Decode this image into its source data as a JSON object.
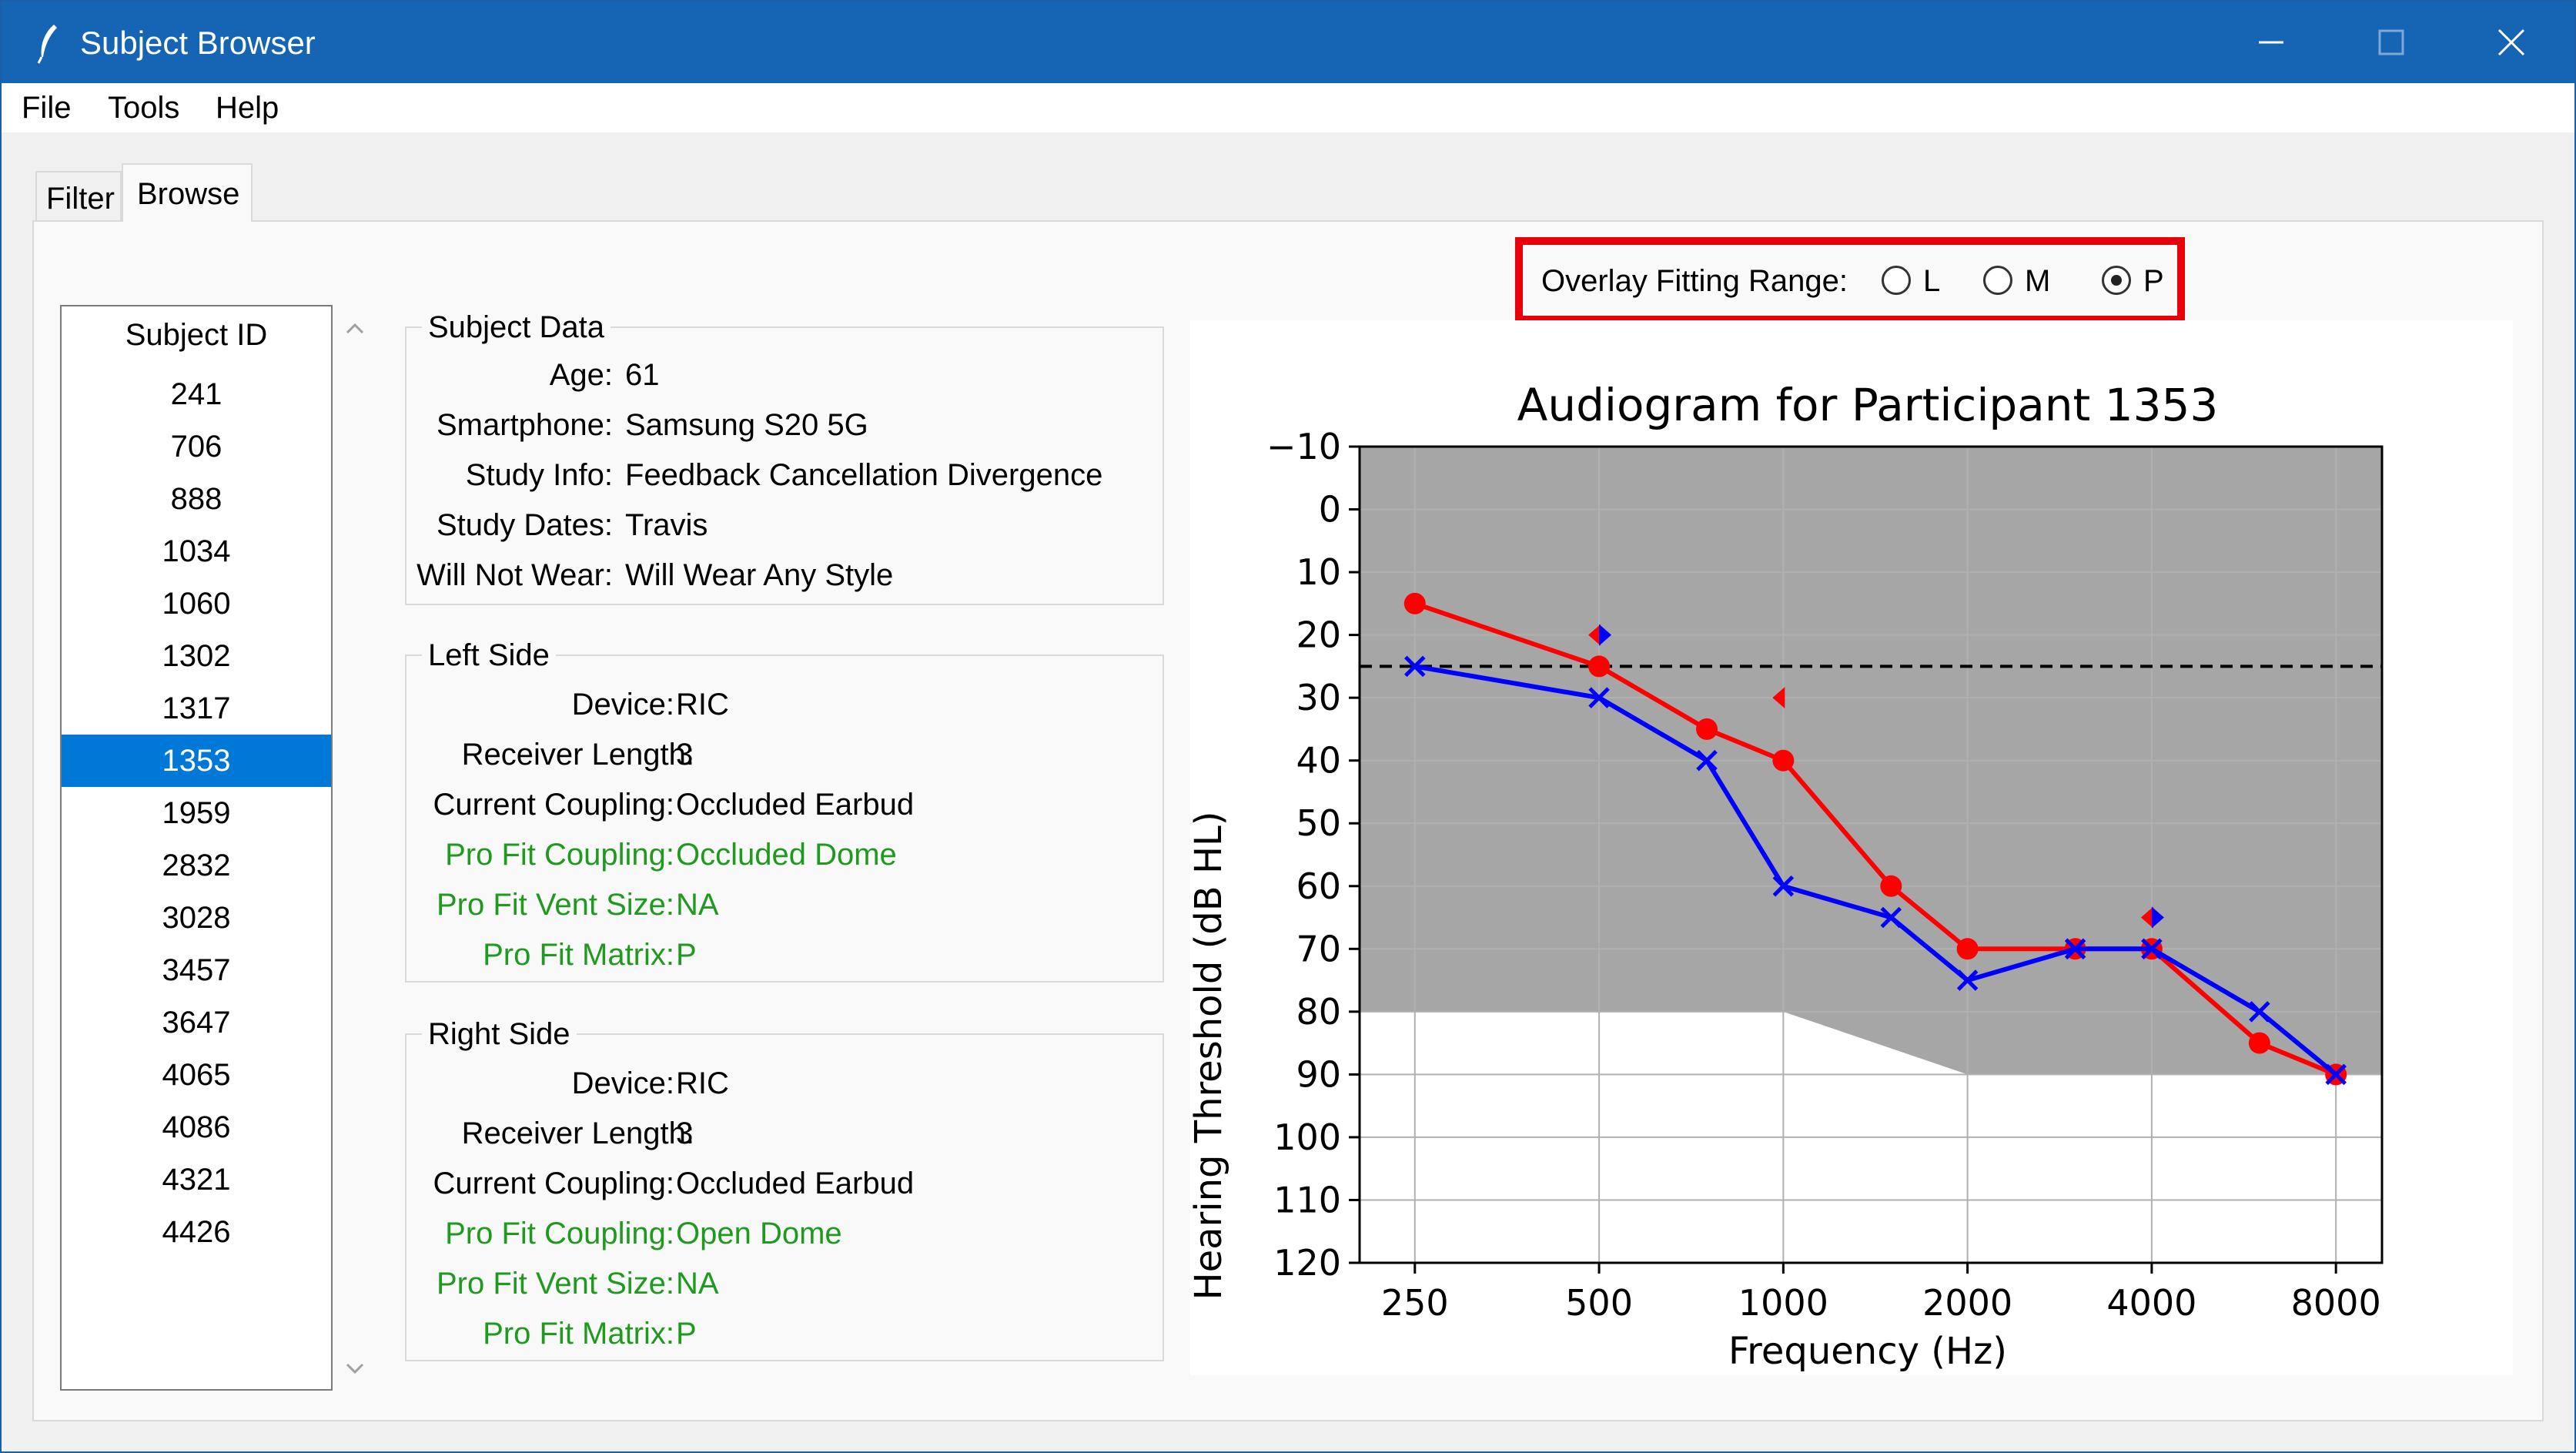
{
  "window": {
    "title": "Subject Browser",
    "minimize_icon": "minimize-icon",
    "maximize_icon": "maximize-icon",
    "close_icon": "close-icon"
  },
  "menu": {
    "file": "File",
    "tools": "Tools",
    "help": "Help"
  },
  "tabs": {
    "filter": "Filter",
    "browse": "Browse",
    "active": "Browse"
  },
  "subject_list": {
    "header": "Subject ID",
    "items": [
      "241",
      "706",
      "888",
      "1034",
      "1060",
      "1302",
      "1317",
      "1353",
      "1959",
      "2832",
      "3028",
      "3457",
      "3647",
      "4065",
      "4086",
      "4321",
      "4426"
    ],
    "selected": "1353"
  },
  "subject_data": {
    "title": "Subject Data",
    "age_label": "Age:",
    "age": "61",
    "smartphone_label": "Smartphone:",
    "smartphone": "Samsung S20 5G",
    "study_info_label": "Study Info:",
    "study_info": "Feedback Cancellation Divergence",
    "study_dates_label": "Study Dates:",
    "study_dates": "Travis",
    "will_not_wear_label": "Will Not Wear:",
    "will_not_wear": "Will Wear Any Style"
  },
  "left_side": {
    "title": "Left Side",
    "device_label": "Device:",
    "device": "RIC",
    "receiver_length_label": "Receiver Length:",
    "receiver_length": "3",
    "current_coupling_label": "Current Coupling:",
    "current_coupling": "Occluded Earbud",
    "pro_fit_coupling_label": "Pro Fit Coupling:",
    "pro_fit_coupling": "Occluded Dome",
    "pro_fit_vent_size_label": "Pro Fit Vent Size:",
    "pro_fit_vent_size": "NA",
    "pro_fit_matrix_label": "Pro Fit Matrix:",
    "pro_fit_matrix": "P"
  },
  "right_side": {
    "title": "Right Side",
    "device_label": "Device:",
    "device": "RIC",
    "receiver_length_label": "Receiver Length:",
    "receiver_length": "3",
    "current_coupling_label": "Current Coupling:",
    "current_coupling": "Occluded Earbud",
    "pro_fit_coupling_label": "Pro Fit Coupling:",
    "pro_fit_coupling": "Open Dome",
    "pro_fit_vent_size_label": "Pro Fit Vent Size:",
    "pro_fit_vent_size": "NA",
    "pro_fit_matrix_label": "Pro Fit Matrix:",
    "pro_fit_matrix": "P"
  },
  "overlay": {
    "label": "Overlay Fitting Range:",
    "options": [
      "L",
      "M",
      "P"
    ],
    "selected": "P"
  },
  "colors": {
    "titlebar": "#1565b4",
    "selection": "#0078d7",
    "pro_fit_text": "#1f9a1f",
    "highlight_box": "#e8000b",
    "right_ear": "#ff0000",
    "left_ear": "#0000ff",
    "fitting_range": "#a6a6a6"
  },
  "chart_data": {
    "type": "line",
    "title": "Audiogram for Participant 1353",
    "xlabel": "Frequency (Hz)",
    "ylabel": "Hearing Threshold (dB HL)",
    "x_scale": "log2",
    "x_ticks": [
      250,
      500,
      1000,
      2000,
      4000,
      8000
    ],
    "y_ticks": [
      -10,
      0,
      10,
      20,
      30,
      40,
      50,
      60,
      70,
      80,
      90,
      100,
      110,
      120
    ],
    "ylim": [
      -10,
      120
    ],
    "y_inverted": true,
    "grid": true,
    "reference_line_dB": 25,
    "fitting_range": {
      "upper_bound_dB": -10,
      "lower_bound": [
        {
          "x": 250,
          "y": 80
        },
        {
          "x": 1000,
          "y": 80
        },
        {
          "x": 2000,
          "y": 90
        },
        {
          "x": 8000,
          "y": 90
        }
      ]
    },
    "series": [
      {
        "color": "#ff0000",
        "marker": "circle",
        "x": [
          250,
          500,
          750,
          1000,
          1500,
          2000,
          3000,
          4000,
          6000,
          8000
        ],
        "y": [
          15,
          25,
          35,
          40,
          60,
          70,
          70,
          70,
          85,
          90
        ]
      },
      {
        "color": "#0000ff",
        "marker": "x",
        "x": [
          250,
          500,
          750,
          1000,
          1500,
          2000,
          3000,
          4000,
          6000,
          8000
        ],
        "y": [
          25,
          30,
          40,
          60,
          65,
          75,
          70,
          70,
          80,
          90
        ]
      }
    ],
    "bone_markers": [
      {
        "color": "#ff0000",
        "shape": "triangle-left",
        "x": 500,
        "y": 20
      },
      {
        "color": "#0000ff",
        "shape": "triangle-right",
        "x": 500,
        "y": 20
      },
      {
        "color": "#ff0000",
        "shape": "triangle-left",
        "x": 1000,
        "y": 30
      },
      {
        "color": "#ff0000",
        "shape": "triangle-left",
        "x": 4000,
        "y": 65
      },
      {
        "color": "#0000ff",
        "shape": "triangle-right",
        "x": 4000,
        "y": 65
      }
    ]
  }
}
